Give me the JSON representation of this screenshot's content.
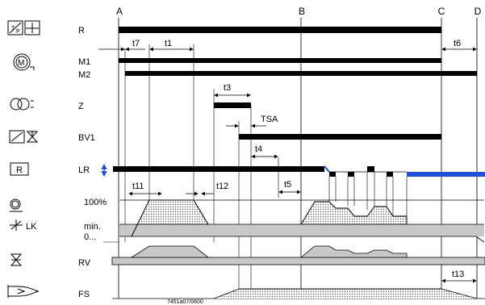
{
  "phases": [
    "A",
    "B",
    "C",
    "D"
  ],
  "signals": {
    "R": "R",
    "M1": "M1",
    "M2": "M2",
    "Z": "Z",
    "BV1": "BV1",
    "LR": "LR",
    "RV": "RV",
    "FS": "FS"
  },
  "icon_labels": {
    "R_box": "R",
    "LK": "LK"
  },
  "levels": {
    "p100": "100%",
    "min": "min.",
    "zero": "0..."
  },
  "times": {
    "t1": "t1",
    "t3": "t3",
    "t4": "t4",
    "t5": "t5",
    "t6": "t6",
    "t7": "t7",
    "t11": "t11",
    "t12": "t12",
    "t13": "t13",
    "TSA": "TSA"
  },
  "code": "7451a07/0600",
  "colors": {
    "line": "#000000",
    "accent_blue": "#1f4fd0",
    "fill_gray": "#c8c8c8"
  }
}
